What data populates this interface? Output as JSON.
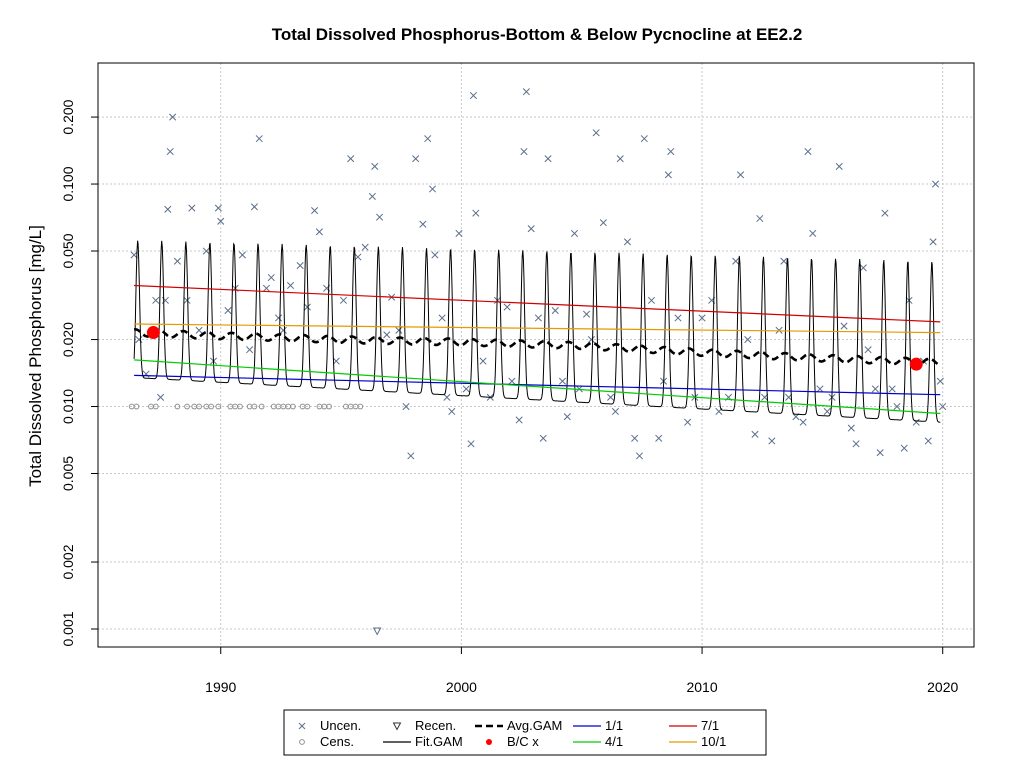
{
  "chart_data": {
    "type": "scatter",
    "title": "Total Dissolved Phosphorus-Bottom & Below Pycnocline at EE2.2",
    "xlabel": "",
    "ylabel": "Total Dissolved Phosphorus [mg/L]",
    "y_scale": "log",
    "xlim": [
      1984.9,
      2021.3
    ],
    "ylim": [
      0.00083,
      0.35
    ],
    "x_ticks": [
      "1990",
      "2000",
      "2010",
      "2020"
    ],
    "y_ticks": [
      "0.001",
      "0.002",
      "0.005",
      "0.010",
      "0.020",
      "0.050",
      "0.100",
      "0.200"
    ],
    "grid": true,
    "legend_position": "bottom",
    "legend": [
      {
        "label": "Uncen.",
        "symbol": "x"
      },
      {
        "label": "Recen.",
        "symbol": "triangle-down"
      },
      {
        "label": "Avg.GAM",
        "symbol": "dashed-line"
      },
      {
        "label": "1/1",
        "symbol": "line",
        "color": "#0000cc"
      },
      {
        "label": "7/1",
        "symbol": "line",
        "color": "#d00000"
      },
      {
        "label": "Cens.",
        "symbol": "circle"
      },
      {
        "label": "Fit.GAM",
        "symbol": "line"
      },
      {
        "label": "B/C x",
        "symbol": "dot",
        "color": "#ff0000"
      },
      {
        "label": "4/1",
        "symbol": "line",
        "color": "#00cc00"
      },
      {
        "label": "10/1",
        "symbol": "line",
        "color": "#e69a00"
      }
    ],
    "colors": {
      "uncensored": "#5a6e8a",
      "censored": "#909090",
      "fit_gam": "#000000",
      "avg_gam": "#000000",
      "bc": "#ff0000",
      "line_1_1": "#0000cc",
      "line_4_1": "#00cc00",
      "line_7_1": "#d00000",
      "line_10_1": "#e69a00",
      "grid": "#c8c8c8"
    },
    "uncensored_points": [
      [
        1986.4,
        0.048
      ],
      [
        1986.6,
        0.02
      ],
      [
        1986.9,
        0.014
      ],
      [
        1987.3,
        0.03
      ],
      [
        1987.5,
        0.011
      ],
      [
        1987.7,
        0.03
      ],
      [
        1987.8,
        0.077
      ],
      [
        1987.9,
        0.14
      ],
      [
        1988.0,
        0.2
      ],
      [
        1988.2,
        0.045
      ],
      [
        1988.6,
        0.03
      ],
      [
        1988.8,
        0.078
      ],
      [
        1989.1,
        0.022
      ],
      [
        1989.4,
        0.05
      ],
      [
        1989.7,
        0.016
      ],
      [
        1989.9,
        0.078
      ],
      [
        1990.0,
        0.068
      ],
      [
        1990.3,
        0.027
      ],
      [
        1990.6,
        0.034
      ],
      [
        1990.9,
        0.048
      ],
      [
        1991.2,
        0.018
      ],
      [
        1991.4,
        0.079
      ],
      [
        1991.6,
        0.16
      ],
      [
        1991.9,
        0.034
      ],
      [
        1992.1,
        0.038
      ],
      [
        1992.4,
        0.025
      ],
      [
        1992.6,
        0.022
      ],
      [
        1992.9,
        0.035
      ],
      [
        1993.3,
        0.043
      ],
      [
        1993.6,
        0.028
      ],
      [
        1993.9,
        0.076
      ],
      [
        1994.1,
        0.061
      ],
      [
        1994.4,
        0.034
      ],
      [
        1994.8,
        0.016
      ],
      [
        1995.1,
        0.03
      ],
      [
        1995.4,
        0.13
      ],
      [
        1995.7,
        0.047
      ],
      [
        1996.0,
        0.052
      ],
      [
        1996.3,
        0.088
      ],
      [
        1996.4,
        0.12
      ],
      [
        1996.6,
        0.071
      ],
      [
        1996.9,
        0.021
      ],
      [
        1997.1,
        0.031
      ],
      [
        1997.4,
        0.022
      ],
      [
        1997.7,
        0.01
      ],
      [
        1997.9,
        0.006
      ],
      [
        1998.1,
        0.13
      ],
      [
        1998.4,
        0.066
      ],
      [
        1998.6,
        0.16
      ],
      [
        1998.8,
        0.095
      ],
      [
        1998.9,
        0.048
      ],
      [
        1999.2,
        0.025
      ],
      [
        1999.4,
        0.011
      ],
      [
        1999.6,
        0.0095
      ],
      [
        1999.9,
        0.06
      ],
      [
        2000.2,
        0.012
      ],
      [
        2000.4,
        0.0068
      ],
      [
        2000.5,
        0.25
      ],
      [
        2000.6,
        0.074
      ],
      [
        2000.9,
        0.016
      ],
      [
        2001.2,
        0.011
      ],
      [
        2001.5,
        0.03
      ],
      [
        2001.9,
        0.028
      ],
      [
        2002.1,
        0.013
      ],
      [
        2002.4,
        0.0087
      ],
      [
        2002.6,
        0.14
      ],
      [
        2002.7,
        0.26
      ],
      [
        2002.9,
        0.063
      ],
      [
        2003.2,
        0.025
      ],
      [
        2003.4,
        0.0072
      ],
      [
        2003.6,
        0.13
      ],
      [
        2003.9,
        0.027
      ],
      [
        2004.2,
        0.013
      ],
      [
        2004.4,
        0.009
      ],
      [
        2004.7,
        0.06
      ],
      [
        2004.9,
        0.012
      ],
      [
        2005.2,
        0.026
      ],
      [
        2005.4,
        0.02
      ],
      [
        2005.6,
        0.17
      ],
      [
        2005.9,
        0.067
      ],
      [
        2006.2,
        0.011
      ],
      [
        2006.4,
        0.0095
      ],
      [
        2006.6,
        0.13
      ],
      [
        2006.9,
        0.055
      ],
      [
        2007.2,
        0.0072
      ],
      [
        2007.4,
        0.006
      ],
      [
        2007.6,
        0.16
      ],
      [
        2007.9,
        0.03
      ],
      [
        2008.2,
        0.0072
      ],
      [
        2008.4,
        0.013
      ],
      [
        2008.6,
        0.11
      ],
      [
        2008.7,
        0.14
      ],
      [
        2009.0,
        0.025
      ],
      [
        2009.4,
        0.0085
      ],
      [
        2009.7,
        0.011
      ],
      [
        2010.0,
        0.025
      ],
      [
        2010.4,
        0.03
      ],
      [
        2010.7,
        0.0095
      ],
      [
        2011.1,
        0.011
      ],
      [
        2011.4,
        0.045
      ],
      [
        2011.6,
        0.11
      ],
      [
        2011.9,
        0.02
      ],
      [
        2012.2,
        0.0075
      ],
      [
        2012.4,
        0.07
      ],
      [
        2012.6,
        0.011
      ],
      [
        2012.9,
        0.007
      ],
      [
        2013.2,
        0.022
      ],
      [
        2013.4,
        0.045
      ],
      [
        2013.6,
        0.011
      ],
      [
        2013.9,
        0.009
      ],
      [
        2014.2,
        0.0085
      ],
      [
        2014.4,
        0.14
      ],
      [
        2014.6,
        0.06
      ],
      [
        2014.9,
        0.012
      ],
      [
        2015.2,
        0.0095
      ],
      [
        2015.4,
        0.011
      ],
      [
        2015.7,
        0.12
      ],
      [
        2015.9,
        0.023
      ],
      [
        2016.2,
        0.008
      ],
      [
        2016.4,
        0.0068
      ],
      [
        2016.7,
        0.042
      ],
      [
        2016.9,
        0.018
      ],
      [
        2017.2,
        0.012
      ],
      [
        2017.4,
        0.0062
      ],
      [
        2017.6,
        0.074
      ],
      [
        2017.9,
        0.012
      ],
      [
        2018.1,
        0.01
      ],
      [
        2018.4,
        0.0065
      ],
      [
        2018.6,
        0.03
      ],
      [
        2018.9,
        0.0085
      ],
      [
        2019.2,
        0.016
      ],
      [
        2019.4,
        0.007
      ],
      [
        2019.6,
        0.055
      ],
      [
        2019.7,
        0.1
      ],
      [
        2019.9,
        0.013
      ],
      [
        2020.0,
        0.01
      ]
    ],
    "censored_points": [
      [
        1986.3,
        0.01
      ],
      [
        1986.5,
        0.01
      ],
      [
        1987.1,
        0.01
      ],
      [
        1987.3,
        0.01
      ],
      [
        1988.2,
        0.01
      ],
      [
        1988.6,
        0.01
      ],
      [
        1988.9,
        0.01
      ],
      [
        1989.1,
        0.01
      ],
      [
        1989.4,
        0.01
      ],
      [
        1989.6,
        0.01
      ],
      [
        1989.9,
        0.01
      ],
      [
        1990.4,
        0.01
      ],
      [
        1990.6,
        0.01
      ],
      [
        1990.8,
        0.01
      ],
      [
        1991.2,
        0.01
      ],
      [
        1991.4,
        0.01
      ],
      [
        1991.7,
        0.01
      ],
      [
        1992.2,
        0.01
      ],
      [
        1992.4,
        0.01
      ],
      [
        1992.6,
        0.01
      ],
      [
        1992.8,
        0.01
      ],
      [
        1993.0,
        0.01
      ],
      [
        1993.4,
        0.01
      ],
      [
        1993.6,
        0.01
      ],
      [
        1994.1,
        0.01
      ],
      [
        1994.3,
        0.01
      ],
      [
        1994.5,
        0.01
      ],
      [
        1995.2,
        0.01
      ],
      [
        1995.4,
        0.01
      ],
      [
        1995.6,
        0.01
      ],
      [
        1995.8,
        0.01
      ]
    ],
    "recensored_points": [
      [
        1996.5,
        0.00098
      ]
    ],
    "fit_gam": {
      "x_start": 1986.4,
      "x_end": 2019.9,
      "peak_start": 0.056,
      "peak_end": 0.045,
      "trough_start": 0.0135,
      "trough_end": 0.0085,
      "peak_phase": 0.55
    },
    "avg_gam": [
      [
        1986.4,
        0.0215
      ],
      [
        1990,
        0.0208
      ],
      [
        1995,
        0.02
      ],
      [
        2000,
        0.0195
      ],
      [
        2005,
        0.0188
      ],
      [
        2010,
        0.0175
      ],
      [
        2015,
        0.0165
      ],
      [
        2019.8,
        0.0158
      ]
    ],
    "line_1_1": [
      [
        1986.4,
        0.0138
      ],
      [
        2019.9,
        0.0113
      ]
    ],
    "line_4_1": [
      [
        1986.4,
        0.0162
      ],
      [
        2019.9,
        0.0093
      ]
    ],
    "line_7_1": [
      [
        1986.4,
        0.035
      ],
      [
        2019.9,
        0.024
      ]
    ],
    "line_10_1": [
      [
        1986.4,
        0.0235
      ],
      [
        2019.9,
        0.0215
      ]
    ],
    "bc_points": [
      [
        1987.2,
        0.0215
      ],
      [
        2018.9,
        0.0155
      ]
    ]
  }
}
